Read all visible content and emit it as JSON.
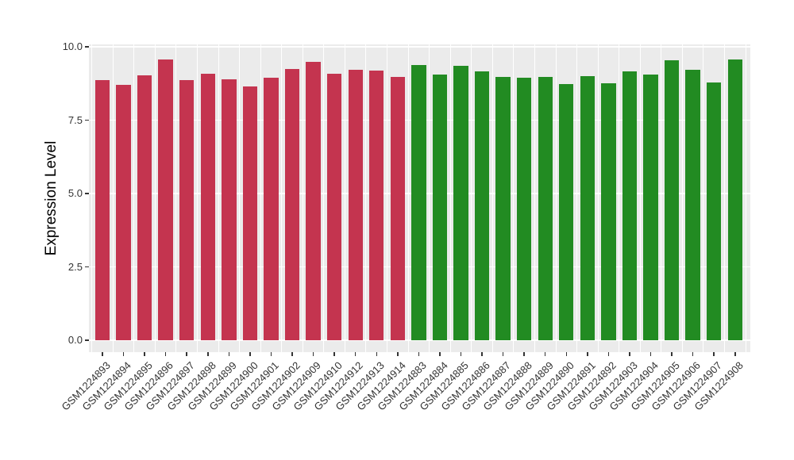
{
  "chart_data": {
    "type": "bar",
    "title": "",
    "xlabel": "",
    "ylabel": "Expression Level",
    "yticks": [
      0.0,
      2.5,
      5.0,
      7.5,
      10.0
    ],
    "ytick_labels": [
      "0.0",
      "2.5",
      "5.0",
      "7.5",
      "10.0"
    ],
    "ylim": [
      -0.45,
      10.1
    ],
    "grid": true,
    "legend": "none",
    "panel_bg": "#EBEBEB",
    "grid_color": "#FFFFFF",
    "tick_text_color": "#333333",
    "axis_title_color": "#000000",
    "group_colors": {
      "red": "#C4344F",
      "green": "#228B22"
    },
    "categories": [
      "GSM1224893",
      "GSM1224894",
      "GSM1224895",
      "GSM1224896",
      "GSM1224897",
      "GSM1224898",
      "GSM1224899",
      "GSM1224900",
      "GSM1224901",
      "GSM1224902",
      "GSM1224909",
      "GSM1224910",
      "GSM1224912",
      "GSM1224913",
      "GSM1224914",
      "GSM1224883",
      "GSM1224884",
      "GSM1224885",
      "GSM1224886",
      "GSM1224887",
      "GSM1224888",
      "GSM1224889",
      "GSM1224890",
      "GSM1224891",
      "GSM1224892",
      "GSM1224903",
      "GSM1224904",
      "GSM1224905",
      "GSM1224906",
      "GSM1224907",
      "GSM1224908"
    ],
    "values": [
      8.87,
      8.71,
      9.03,
      9.57,
      8.87,
      9.07,
      8.89,
      8.64,
      8.95,
      9.23,
      9.48,
      9.07,
      9.21,
      9.19,
      8.97,
      9.38,
      9.06,
      9.36,
      9.16,
      8.97,
      8.95,
      8.98,
      8.72,
      9.01,
      8.76,
      9.16,
      9.06,
      9.55,
      9.22,
      8.78,
      9.56
    ],
    "bar_groups": [
      "red",
      "red",
      "red",
      "red",
      "red",
      "red",
      "red",
      "red",
      "red",
      "red",
      "red",
      "red",
      "red",
      "red",
      "red",
      "green",
      "green",
      "green",
      "green",
      "green",
      "green",
      "green",
      "green",
      "green",
      "green",
      "green",
      "green",
      "green",
      "green",
      "green",
      "green"
    ]
  }
}
